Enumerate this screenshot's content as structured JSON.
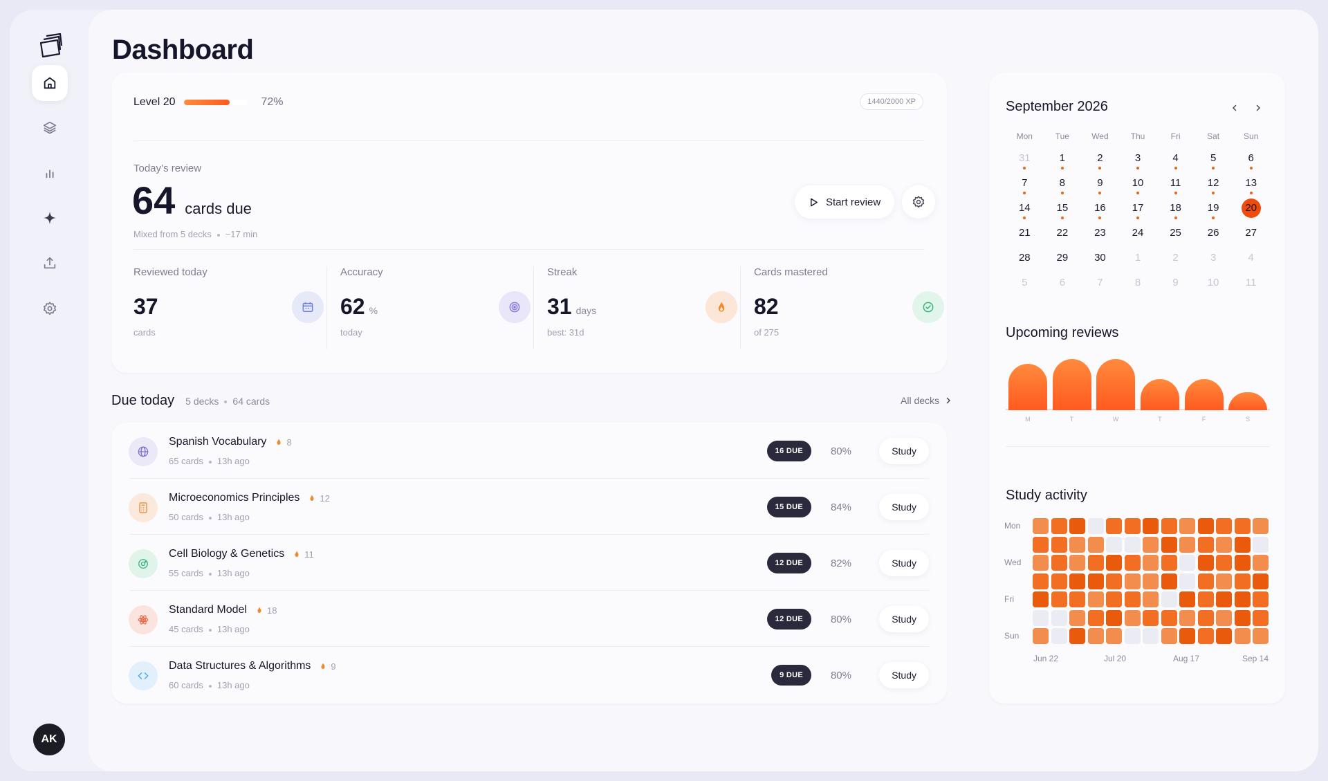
{
  "sidebar": {
    "items": [
      {
        "name": "home",
        "icon": "home-icon",
        "active": true
      },
      {
        "name": "decks",
        "icon": "layers-icon",
        "active": false
      },
      {
        "name": "stats",
        "icon": "bar-chart-icon",
        "active": false
      },
      {
        "name": "ai",
        "icon": "sparkle-icon",
        "active": false
      },
      {
        "name": "upload",
        "icon": "upload-icon",
        "active": false
      },
      {
        "name": "settings",
        "icon": "gear-icon",
        "active": false
      }
    ],
    "avatar": "AK"
  },
  "page": {
    "title": "Dashboard"
  },
  "hero": {
    "level_label": "Level 20",
    "level_progress": 0.72,
    "level_pct": "72%",
    "xp": "1440/2000 XP",
    "review_label": "Today’s review",
    "review_count": "64",
    "review_unit": "cards due",
    "review_sub_decks": "Mixed from 5 decks",
    "review_sub_time": "~17 min",
    "start_label": "Start review"
  },
  "stats": [
    {
      "label": "Reviewed today",
      "value": "37",
      "unit": "",
      "sub": "cards",
      "icon": "calendar-icon",
      "color": "#6c7ee1",
      "bg": "#e6e9f8"
    },
    {
      "label": "Accuracy",
      "value": "62",
      "unit": "%",
      "sub": "today",
      "icon": "target-icon",
      "color": "#8b7be0",
      "bg": "#e8e6f8"
    },
    {
      "label": "Streak",
      "value": "31",
      "unit": "days",
      "sub": "best: 31d",
      "icon": "flame-icon",
      "color": "#f07a20",
      "bg": "#fbe6d8"
    },
    {
      "label": "Cards mastered",
      "value": "82",
      "unit": "",
      "sub": "of 275",
      "icon": "check-circle-icon",
      "color": "#34b87a",
      "bg": "#e2f5ea"
    }
  ],
  "due": {
    "title": "Due today",
    "decks_count": "5 decks",
    "cards_count": "64 cards",
    "all_decks": "All decks",
    "decks": [
      {
        "name": "Spanish Vocabulary",
        "streak": "8",
        "cards": "65 cards",
        "ago": "13h ago",
        "due": "16 DUE",
        "pct": "80%",
        "study": "Study",
        "icon": "globe-icon",
        "color": "#7b6fd6",
        "bg": "#ebe9f8"
      },
      {
        "name": "Microeconomics Principles",
        "streak": "12",
        "cards": "50 cards",
        "ago": "13h ago",
        "due": "15 DUE",
        "pct": "84%",
        "study": "Study",
        "icon": "calculator-icon",
        "color": "#ef8a3a",
        "bg": "#fbe9dc"
      },
      {
        "name": "Cell Biology & Genetics",
        "streak": "11",
        "cards": "55 cards",
        "ago": "13h ago",
        "due": "12 DUE",
        "pct": "82%",
        "study": "Study",
        "icon": "cell-icon",
        "color": "#35b57c",
        "bg": "#e1f4ea"
      },
      {
        "name": "Standard Model",
        "streak": "18",
        "cards": "45 cards",
        "ago": "13h ago",
        "due": "12 DUE",
        "pct": "80%",
        "study": "Study",
        "icon": "atom-icon",
        "color": "#e76a4a",
        "bg": "#fbe4dd"
      },
      {
        "name": "Data Structures & Algorithms",
        "streak": "9",
        "cards": "60 cards",
        "ago": "13h ago",
        "due": "9 DUE",
        "pct": "80%",
        "study": "Study",
        "icon": "code-icon",
        "color": "#4aa8e8",
        "bg": "#e2f0fb"
      }
    ]
  },
  "calendar": {
    "title": "September 2026",
    "weekdays": [
      "Mon",
      "Tue",
      "Wed",
      "Thu",
      "Fri",
      "Sat",
      "Sun"
    ],
    "days": [
      {
        "n": "31",
        "out": true,
        "dot": true
      },
      {
        "n": "1",
        "dot": true
      },
      {
        "n": "2",
        "dot": true
      },
      {
        "n": "3",
        "dot": true
      },
      {
        "n": "4",
        "dot": true
      },
      {
        "n": "5",
        "dot": true
      },
      {
        "n": "6",
        "dot": true
      },
      {
        "n": "7",
        "dot": true
      },
      {
        "n": "8",
        "dot": true
      },
      {
        "n": "9",
        "dot": true
      },
      {
        "n": "10",
        "dot": true
      },
      {
        "n": "11",
        "dot": true
      },
      {
        "n": "12",
        "dot": true
      },
      {
        "n": "13",
        "dot": true
      },
      {
        "n": "14",
        "dot": true
      },
      {
        "n": "15",
        "dot": true
      },
      {
        "n": "16",
        "dot": true
      },
      {
        "n": "17",
        "dot": true
      },
      {
        "n": "18",
        "dot": true
      },
      {
        "n": "19",
        "dot": true
      },
      {
        "n": "20",
        "today": true
      },
      {
        "n": "21"
      },
      {
        "n": "22"
      },
      {
        "n": "23"
      },
      {
        "n": "24"
      },
      {
        "n": "25"
      },
      {
        "n": "26"
      },
      {
        "n": "27"
      },
      {
        "n": "28"
      },
      {
        "n": "29"
      },
      {
        "n": "30"
      },
      {
        "n": "1",
        "out": true
      },
      {
        "n": "2",
        "out": true
      },
      {
        "n": "3",
        "out": true
      },
      {
        "n": "4",
        "out": true
      },
      {
        "n": "5",
        "out": true
      },
      {
        "n": "6",
        "out": true
      },
      {
        "n": "7",
        "out": true
      },
      {
        "n": "8",
        "out": true
      },
      {
        "n": "9",
        "out": true
      },
      {
        "n": "10",
        "out": true
      },
      {
        "n": "11",
        "out": true
      }
    ]
  },
  "upcoming": {
    "title": "Upcoming reviews",
    "chart_data": {
      "type": "bar",
      "categories": [
        "M",
        "T",
        "W",
        "T",
        "F",
        "S"
      ],
      "values": [
        78,
        86,
        86,
        52,
        52,
        30
      ],
      "ylim": [
        0,
        100
      ]
    }
  },
  "activity": {
    "title": "Study activity",
    "day_labels": [
      "Mon",
      "Wed",
      "Fri",
      "Sun"
    ],
    "month_labels": [
      "Jun 22",
      "Jul 20",
      "Aug 17",
      "Sep 14"
    ],
    "levels": [
      [
        2,
        3,
        4,
        0,
        3,
        3,
        4,
        3,
        2,
        4,
        3,
        3,
        2
      ],
      [
        3,
        3,
        2,
        2,
        0,
        0,
        2,
        4,
        2,
        3,
        2,
        4,
        0
      ],
      [
        2,
        3,
        2,
        3,
        4,
        3,
        2,
        3,
        0,
        4,
        3,
        4,
        2
      ],
      [
        3,
        3,
        4,
        4,
        3,
        2,
        2,
        4,
        0,
        3,
        2,
        3,
        4
      ],
      [
        4,
        3,
        3,
        2,
        3,
        3,
        2,
        0,
        4,
        3,
        4,
        4,
        3
      ],
      [
        0,
        0,
        2,
        3,
        4,
        2,
        3,
        3,
        2,
        3,
        2,
        4,
        3
      ],
      [
        2,
        0,
        4,
        2,
        2,
        0,
        0,
        2,
        4,
        3,
        4,
        2,
        2
      ]
    ]
  },
  "colors": {
    "accent": "#ff5a1f",
    "heat": [
      "#ebebf3",
      "#f7c9a8",
      "#f38d4d",
      "#f16e22",
      "#e95a0c"
    ]
  }
}
